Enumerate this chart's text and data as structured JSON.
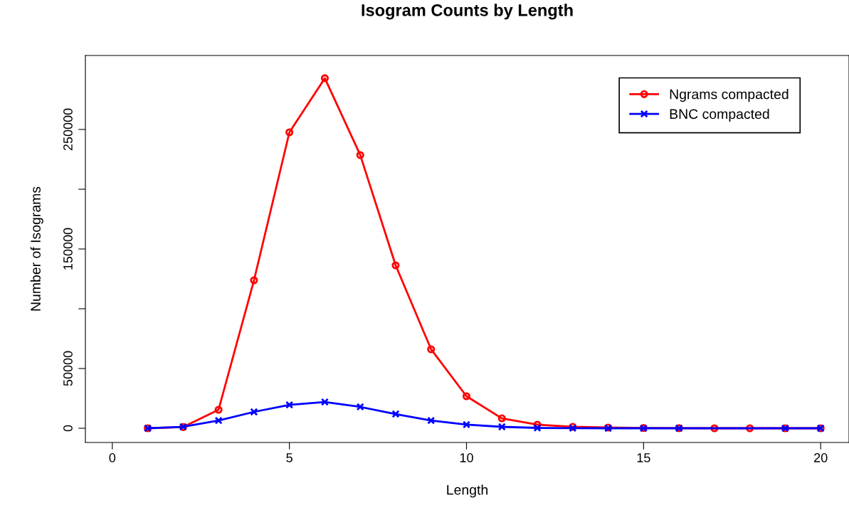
{
  "chart_data": {
    "type": "line",
    "title": "Isogram Counts by Length",
    "xlabel": "Length",
    "ylabel": "Number of Isograms",
    "xlim": [
      -0.76,
      20.8
    ],
    "xticks": [
      0,
      5,
      10,
      15,
      20
    ],
    "ylim": [
      -11900,
      311900
    ],
    "yticks": [
      0,
      50000,
      {
        "value": 100000,
        "label": null
      },
      150000,
      {
        "value": 200000,
        "label": null
      },
      250000
    ],
    "grid": false,
    "legend": "top right",
    "line_style": "solid",
    "series": [
      {
        "name": "Ngrams compacted",
        "color": "#ff0000",
        "marker": "circle",
        "x": [
          1,
          2,
          3,
          4,
          5,
          6,
          7,
          8,
          9,
          10,
          11,
          12,
          13,
          14,
          15,
          16,
          17,
          18,
          19,
          20
        ],
        "values": [
          0,
          1000,
          15500,
          123800,
          247600,
          292900,
          228600,
          136300,
          66100,
          26800,
          8300,
          3000,
          1200,
          600,
          200,
          100,
          0,
          0,
          0,
          0
        ]
      },
      {
        "name": "BNC compacted",
        "color": "#0000ff",
        "marker": "cross",
        "x": [
          1,
          2,
          3,
          4,
          5,
          6,
          7,
          8,
          9,
          10,
          11,
          12,
          13,
          14,
          15,
          16,
          19,
          20
        ],
        "values": [
          0,
          1200,
          6500,
          13700,
          19600,
          22000,
          17900,
          11900,
          6500,
          3000,
          1200,
          300,
          100,
          0,
          0,
          0,
          0,
          0
        ]
      }
    ]
  }
}
